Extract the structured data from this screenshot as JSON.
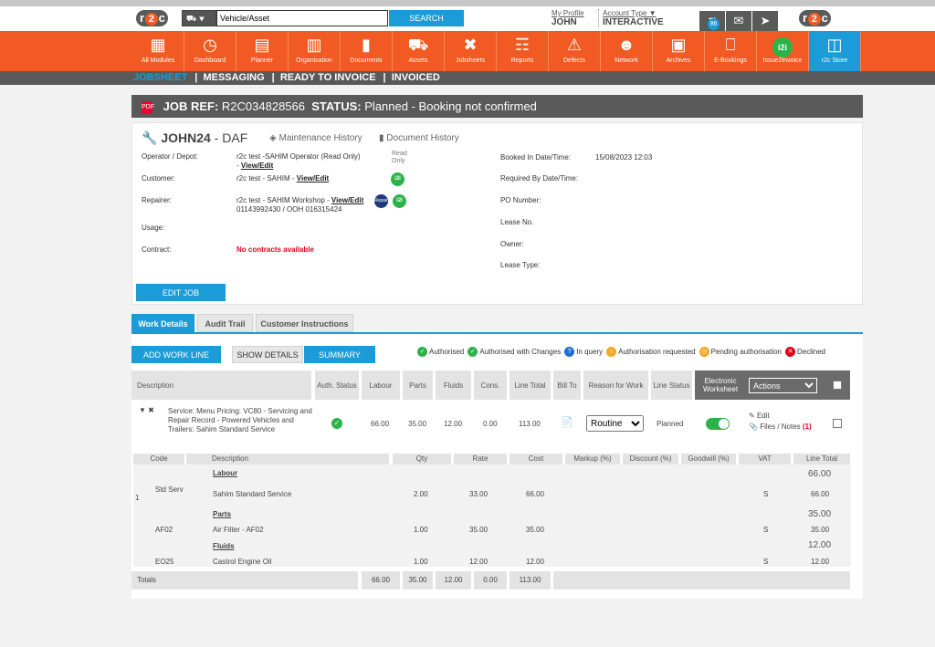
{
  "header": {
    "logo_text_left": "r2c",
    "logo_text_right": "r2c",
    "search_placeholder": "Vehicle/Asset",
    "search_button": "SEARCH",
    "profile_label": "My Profile",
    "profile_name": "JOHN",
    "account_type_label": "Account Type",
    "account_type_value": "INTERACTIVE",
    "notification_count": "86"
  },
  "nav": [
    {
      "label": "All Modules",
      "icon": "grid-icon"
    },
    {
      "label": "Dashboard",
      "icon": "gauge-icon"
    },
    {
      "label": "Planner",
      "icon": "calendar-icon"
    },
    {
      "label": "Organisation",
      "icon": "buildings-icon"
    },
    {
      "label": "Documents",
      "icon": "folder-icon"
    },
    {
      "label": "Assets",
      "icon": "truck-icon"
    },
    {
      "label": "Jobsheets",
      "icon": "tools-icon"
    },
    {
      "label": "Reports",
      "icon": "clipboard-icon"
    },
    {
      "label": "Defects",
      "icon": "warning-icon"
    },
    {
      "label": "Network",
      "icon": "contact-card-icon"
    },
    {
      "label": "Archives",
      "icon": "archive-box-icon"
    },
    {
      "label": "E-Bookings",
      "icon": "laptop-icon"
    },
    {
      "label": "Issue2Invoice",
      "icon": "i2i-icon"
    },
    {
      "label": "r2c Store",
      "icon": "briefcase-icon"
    }
  ],
  "subnav": {
    "jobsheet": "JOBSHEET",
    "messaging": "MESSAGING",
    "ready_to_invoice": "READY TO INVOICE",
    "invoiced": "INVOICED"
  },
  "job": {
    "ref_label": "JOB REF:",
    "ref_value": "R2C034828566",
    "status_label": "STATUS:",
    "status_value": "Planned",
    "status_note": "- Booking not confirmed",
    "vehicle": "JOHN24",
    "dash": "-",
    "make": "DAF",
    "maintenance_history": "Maintenance History",
    "document_history": "Document History",
    "operator_label": "Operator / Depot:",
    "operator_value": "r2c test -SAHIM Operator (Read Only)",
    "operator_dash": " - ",
    "view_edit": "View/Edit",
    "read_only": "Read Only",
    "customer_label": "Customer:",
    "customer_value": "r2c test - SAHIM",
    "repairer_label": "Repairer:",
    "repairer_value": "r2c test - SAHIM Workshop",
    "repairer_phone": "01143992430 / OOH 016315424",
    "usage_label": "Usage:",
    "contract_label": "Contract:",
    "contract_value": "No contracts available",
    "booked_in_label": "Booked In Date/Time:",
    "booked_in_value": "15/08/2023 12:03",
    "required_by_label": "Required By Date/Time:",
    "po_label": "PO Number:",
    "lease_no_label": "Lease No.",
    "owner_label": "Owner:",
    "lease_type_label": "Lease Type:",
    "edit_job": "EDIT JOB",
    "i2i": "i2i",
    "repairer_badge": "Repairer"
  },
  "tabs": [
    "Work Details",
    "Audit Trail",
    "Customer Instructions"
  ],
  "toolbar": {
    "add_work_line": "ADD WORK LINE",
    "show_details": "SHOW DETAILS",
    "summary": "SUMMARY"
  },
  "legend": [
    "Authorised",
    "Authorised with Changes",
    "In query",
    "Authorisation requested",
    "Pending authorisation",
    "Declined"
  ],
  "legend_colors": [
    "#2db24a",
    "#2db24a",
    "#1b6fd7",
    "#f5a623",
    "#f5a623",
    "#e3001b"
  ],
  "table_headers": {
    "description": "Description",
    "auth_status": "Auth. Status",
    "labour": "Labour",
    "parts": "Parts",
    "fluids": "Fluids",
    "cons": "Cons.",
    "line_total": "Line Total",
    "bill_to": "Bill To",
    "reason": "Reason for Work",
    "line_status": "Line Status",
    "electronic_worksheet": "Electronic Worksheet",
    "actions": "Actions"
  },
  "work_line": {
    "description": "Service: Menu Pricing: VC80 - Servicing and Repair Record - Powered Vehicles and Trailers: Sahim Standard Service",
    "labour": "66.00",
    "parts": "35.00",
    "fluids": "12.00",
    "cons": "0.00",
    "line_total": "113.00",
    "reason": "Routine",
    "line_status": "Planned",
    "edit": "Edit",
    "files_notes": "Files / Notes",
    "files_count": "(1)"
  },
  "sub_headers": {
    "code": "Code",
    "description": "Description",
    "qty": "Qty",
    "rate": "Rate",
    "cost": "Cost",
    "markup": "Markup (%)",
    "discount": "Discount (%)",
    "goodwill": "Goodwill (%)",
    "vat": "VAT",
    "line_total": "Line Total"
  },
  "sub_lines": {
    "row_number": "1",
    "labour_heading": "Labour",
    "labour_total": "66.00",
    "labour_code": "Std Serv",
    "labour_desc": "Sahim Standard Service",
    "labour_qty": "2.00",
    "labour_rate": "33.00",
    "labour_cost": "66.00",
    "labour_vat": "S",
    "labour_line_total": "66.00",
    "parts_heading": "Parts",
    "parts_total": "35.00",
    "parts_code": "AF02",
    "parts_desc": "Air Filter - AF02",
    "parts_qty": "1.00",
    "parts_rate": "35.00",
    "parts_cost": "35.00",
    "parts_vat": "S",
    "parts_line_total": "35.00",
    "fluids_heading": "Fluids",
    "fluids_total": "12.00",
    "fluids_code": "EO25",
    "fluids_desc": "Castrol Engine Oil",
    "fluids_qty": "1.00",
    "fluids_rate": "12.00",
    "fluids_cost": "12.00",
    "fluids_vat": "S",
    "fluids_line_total": "12.00"
  },
  "totals": {
    "label": "Totals",
    "labour": "66.00",
    "parts": "35.00",
    "fluids": "12.00",
    "cons": "0.00",
    "line_total": "113.00"
  }
}
